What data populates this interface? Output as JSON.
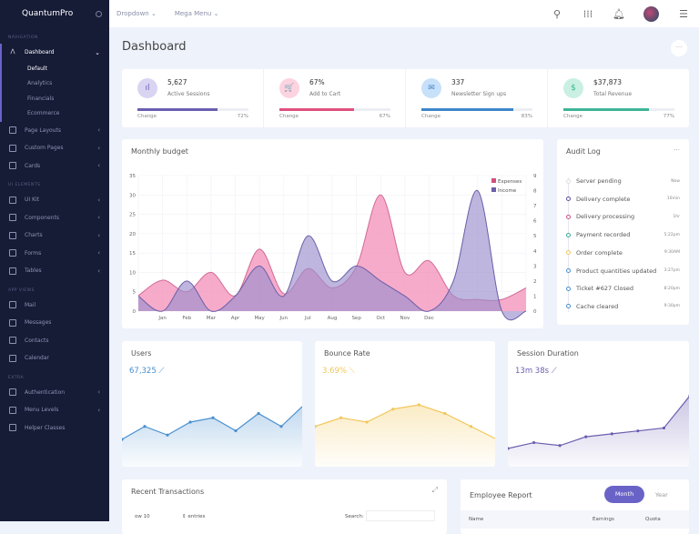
{
  "sidebar": {
    "brand": "QuantumPro",
    "sections": [
      "NAVIGATION",
      "UI ELEMENTS",
      "APP VIEWS",
      "EXTRA"
    ],
    "dashboard": {
      "label": "Dashboard",
      "sub": [
        "Default",
        "Analytics",
        "Financials",
        "Ecommerce"
      ]
    },
    "nav1": [
      {
        "label": "Page Layouts",
        "icon": "layout-icon"
      },
      {
        "label": "Custom Pages",
        "icon": "pages-icon"
      },
      {
        "label": "Cards",
        "icon": "cards-icon"
      }
    ],
    "nav2": [
      {
        "label": "UI Kit",
        "icon": "diamond-icon"
      },
      {
        "label": "Components",
        "icon": "components-icon"
      },
      {
        "label": "Charts",
        "icon": "chart-icon"
      },
      {
        "label": "Forms",
        "icon": "forms-icon"
      },
      {
        "label": "Tables",
        "icon": "tables-icon"
      }
    ],
    "nav3": [
      {
        "label": "Mail",
        "icon": "mail-icon"
      },
      {
        "label": "Messages",
        "icon": "messages-icon"
      },
      {
        "label": "Contacts",
        "icon": "contacts-icon"
      },
      {
        "label": "Calendar",
        "icon": "calendar-icon"
      }
    ],
    "nav4": [
      {
        "label": "Authentication",
        "icon": "lock-icon",
        "chev": true
      },
      {
        "label": "Menu Levels",
        "icon": "folder-icon",
        "chev": true
      },
      {
        "label": "Helper Classes",
        "icon": "gear-icon",
        "chev": false
      }
    ]
  },
  "topbar": {
    "dropdown": "Dropdown ⌄",
    "mega": "Mega Menu ⌄"
  },
  "page": {
    "title": "Dashboard",
    "more": "···"
  },
  "stats": [
    {
      "value": "5,627",
      "label": "Active Sessions",
      "change_label": "Change",
      "pct": "72%",
      "fill": 72,
      "color": "#6a5fb0",
      "bg": "#d9d4f2",
      "icon": "bar-chart-icon",
      "glyph": "ıl"
    },
    {
      "value": "67%",
      "label": "Add to Cart",
      "change_label": "Change",
      "pct": "67%",
      "fill": 67,
      "color": "#e0507e",
      "bg": "#fcd3e0",
      "icon": "cart-icon",
      "glyph": "🛒"
    },
    {
      "value": "337",
      "label": "Newsletter Sign ups",
      "change_label": "Change",
      "pct": "83%",
      "fill": 83,
      "color": "#3f86c9",
      "bg": "#c8e1fa",
      "icon": "mail-icon",
      "glyph": "✉"
    },
    {
      "value": "$37,873",
      "label": "Total Revenue",
      "change_label": "Change",
      "pct": "77%",
      "fill": 77,
      "color": "#3fb496",
      "bg": "#c9f0e2",
      "icon": "dollar-icon",
      "glyph": "$"
    }
  ],
  "budget": {
    "title": "Monthly budget"
  },
  "audit": {
    "title": "Audit Log",
    "more": "···",
    "items": [
      {
        "text": "Server pending",
        "time": "Now",
        "color": "#dddddd"
      },
      {
        "text": "Delivery complete",
        "time": "10min",
        "color": "#5a4fa0"
      },
      {
        "text": "Delivery processing",
        "time": "1hr",
        "color": "#d0507e"
      },
      {
        "text": "Payment recorded",
        "time": "5:22pm",
        "color": "#3aa898"
      },
      {
        "text": "Order complete",
        "time": "9:30AM",
        "color": "#f0c860"
      },
      {
        "text": "Product quantities updated",
        "time": "3:27pm",
        "color": "#4a8ed0"
      },
      {
        "text": "Ticket #627 Closed",
        "time": "8:20pm",
        "color": "#4a8ed0"
      },
      {
        "text": "Cache cleared",
        "time": "9:30pm",
        "color": "#4a8ed0"
      }
    ]
  },
  "kpis": [
    {
      "title": "Users",
      "value": "67,325 ⟋",
      "color": "#4a90d0"
    },
    {
      "title": "Bounce Rate",
      "value": "3.69% ⟍",
      "color": "#f2c75a"
    },
    {
      "title": "Session Duration",
      "value": "13m 38s ⟋",
      "color": "#6a5fb0"
    }
  ],
  "transactions": {
    "title": "Recent Transactions",
    "show": "ow  10",
    "entries": "⇕ entries",
    "search": "Search:"
  },
  "employee": {
    "title": "Employee Report",
    "month": "Month",
    "year": "Year",
    "cols": [
      "Name",
      "Earnings",
      "Quota"
    ]
  },
  "chart_data": [
    {
      "type": "area",
      "title": "Monthly budget",
      "categories": [
        "",
        "Jan",
        "Feb",
        "Mar",
        "Apr",
        "May",
        "Jun",
        "Jul",
        "Aug",
        "Sep",
        "Oct",
        "Nov",
        "Dec",
        "",
        "",
        "",
        ""
      ],
      "y_left": {
        "range": [
          0,
          35
        ],
        "ticks": [
          "0",
          "5",
          "10",
          "15",
          "20",
          "25",
          "30",
          "35"
        ]
      },
      "y_right": {
        "range": [
          0,
          9
        ],
        "ticks": [
          "0",
          "1",
          "2",
          "3",
          "4",
          "5",
          "6",
          "7",
          "8",
          "9"
        ]
      },
      "series": [
        {
          "name": "Expenses",
          "axis": "left",
          "color": "#f48fb8",
          "values": [
            4,
            8,
            5,
            10,
            4,
            16,
            4.5,
            11,
            6,
            11.5,
            30,
            10,
            13,
            4,
            3,
            3,
            6
          ]
        },
        {
          "name": "Income",
          "axis": "right",
          "color": "#9b8fcc",
          "values": [
            1,
            0,
            2,
            0,
            1,
            3,
            1,
            5,
            2,
            3,
            2,
            1,
            0,
            2,
            8,
            0,
            0
          ]
        }
      ],
      "legend": "top-right",
      "grid": true
    },
    {
      "type": "line",
      "title": "Users",
      "values": [
        6,
        9,
        7,
        10,
        11,
        8,
        12,
        9,
        14
      ],
      "color": "#4a90d0"
    },
    {
      "type": "line",
      "title": "Bounce Rate",
      "values": [
        3,
        5,
        4,
        7,
        8,
        6,
        3,
        0
      ],
      "color": "#f2c75a"
    },
    {
      "type": "line",
      "title": "Session Duration",
      "values": [
        1,
        2,
        1.5,
        3,
        3.5,
        4,
        4.5,
        10
      ],
      "color": "#6a5fb0"
    }
  ]
}
